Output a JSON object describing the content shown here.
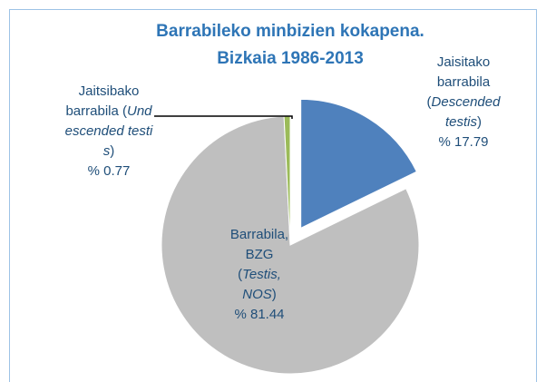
{
  "chart_data": {
    "type": "pie",
    "title": [
      "Barrabileko minbizien kokapena.",
      "Bizkaia 1986-2013"
    ],
    "categories": [
      "Jaisitako barrabila (Descended testis)",
      "Barrabila, BZG (Testis, NOS)",
      "Jaitsibako barrabila (Undescended testis)"
    ],
    "values": [
      17.79,
      81.44,
      0.77
    ],
    "value_labels": [
      "% 17.79",
      "% 81.44",
      "% 0.77"
    ],
    "colors": [
      "#4f81bd",
      "#bfbfbf",
      "#9bbb59"
    ],
    "exploded": [
      true,
      false,
      false
    ]
  }
}
